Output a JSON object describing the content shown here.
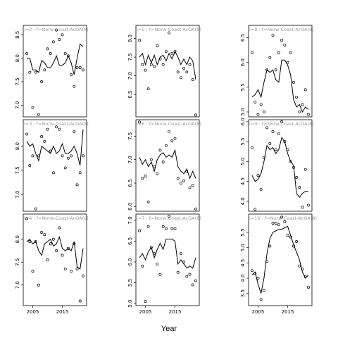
{
  "chart_data": {
    "type": "line",
    "xlabel": "Year",
    "ylabel": "",
    "grid": false,
    "legend": "none",
    "layout": "3x3 small multiples, columns share y-axis per row group",
    "panels": [
      {
        "label": "i=2 : f=Norw-Coast-AcOA(8)",
        "ylim": [
          6.75,
          8.7
        ],
        "yticks": [
          7.0,
          7.5,
          8.0,
          8.5
        ],
        "xticks": [
          2005,
          2015
        ],
        "show_x_ticks": false,
        "x": [
          2003,
          2004,
          2005,
          2006,
          2007,
          2008,
          2009,
          2010,
          2011,
          2012,
          2013,
          2014,
          2015,
          2016,
          2017,
          2018,
          2019,
          2020,
          2021,
          2022
        ],
        "y_line": [
          8.0,
          8.0,
          7.75,
          7.75,
          7.7,
          7.95,
          7.9,
          7.8,
          7.8,
          7.9,
          8.05,
          7.85,
          7.85,
          7.9,
          8.05,
          7.9,
          7.65,
          8.0,
          8.3,
          8.25
        ],
        "points_x": [
          2003,
          2004,
          2005,
          2006,
          2007,
          2008,
          2009,
          2010,
          2011,
          2012,
          2013,
          2014,
          2015,
          2016,
          2017,
          2018,
          2019,
          2020,
          2021,
          2022
        ],
        "points_y": [
          8.1,
          7.7,
          6.95,
          7.7,
          6.8,
          7.5,
          7.75,
          8.2,
          8.1,
          8.35,
          8.6,
          8.4,
          8.5,
          8.1,
          8.05,
          7.65,
          7.4,
          7.8,
          7.8,
          7.75
        ]
      },
      {
        "label": "i=5 : f=Norw-Coast-AcOA(8)",
        "ylim": [
          5.9,
          8.35
        ],
        "yticks": [
          6.5,
          7.0,
          7.5,
          8.0
        ],
        "xticks": [
          2005,
          2015
        ],
        "show_x_ticks": false,
        "x": [
          2003,
          2004,
          2005,
          2006,
          2007,
          2008,
          2009,
          2010,
          2011,
          2012,
          2013,
          2014,
          2015,
          2016,
          2017,
          2018,
          2019,
          2020,
          2021,
          2022
        ],
        "y_line": [
          7.5,
          7.6,
          7.3,
          7.55,
          7.35,
          7.55,
          7.3,
          7.5,
          7.55,
          7.4,
          7.6,
          7.45,
          7.65,
          7.5,
          7.3,
          7.45,
          7.3,
          7.5,
          7.4,
          6.9
        ],
        "points_x": [
          2003,
          2004,
          2005,
          2006,
          2007,
          2008,
          2009,
          2010,
          2011,
          2012,
          2013,
          2014,
          2015,
          2016,
          2017,
          2018,
          2019,
          2020,
          2021,
          2022
        ],
        "points_y": [
          7.95,
          7.3,
          7.15,
          6.65,
          7.3,
          7.25,
          7.8,
          7.45,
          7.3,
          7.65,
          8.15,
          7.6,
          7.65,
          7.1,
          6.95,
          7.2,
          7.1,
          7.3,
          6.9,
          5.95
        ]
      },
      {
        "label": "i=8 : f=Norw-Coast-AcOA(8)",
        "ylim": [
          4.9,
          6.75
        ],
        "yticks": [
          5.0,
          5.5,
          6.0,
          6.5
        ],
        "xticks": [
          2005,
          2015
        ],
        "show_x_ticks": false,
        "x": [
          2003,
          2004,
          2005,
          2006,
          2007,
          2008,
          2009,
          2010,
          2011,
          2012,
          2013,
          2014,
          2015,
          2016,
          2017,
          2018,
          2019,
          2020,
          2021,
          2022
        ],
        "y_line": [
          5.3,
          5.35,
          5.45,
          5.3,
          5.6,
          5.85,
          5.8,
          5.85,
          5.65,
          5.6,
          6.05,
          6.05,
          5.95,
          5.75,
          5.25,
          5.1,
          5.15,
          5.0,
          5.1,
          5.05
        ],
        "points_x": [
          2003,
          2004,
          2005,
          2006,
          2007,
          2008,
          2009,
          2010,
          2011,
          2012,
          2013,
          2014,
          2015,
          2016,
          2017,
          2018,
          2019,
          2020,
          2021,
          2022
        ],
        "points_y": [
          6.2,
          5.2,
          4.95,
          5.15,
          5.0,
          5.85,
          6.1,
          6.55,
          5.85,
          6.2,
          6.45,
          6.35,
          6.0,
          6.2,
          5.6,
          5.3,
          5.0,
          5.15,
          5.45,
          4.95
        ]
      },
      {
        "label": "i=3 : f=Norw-Coast-AcOA(8)",
        "ylim": [
          6.65,
          8.55
        ],
        "yticks": [
          7.0,
          7.5,
          8.0
        ],
        "xticks": [
          2005,
          2015
        ],
        "show_x_ticks": false,
        "x": [
          2003,
          2004,
          2005,
          2006,
          2007,
          2008,
          2009,
          2010,
          2011,
          2012,
          2013,
          2014,
          2015,
          2016,
          2017,
          2018,
          2019,
          2020,
          2021,
          2022
        ],
        "y_line": [
          8.1,
          8.0,
          8.05,
          7.85,
          7.7,
          8.0,
          7.95,
          7.9,
          7.85,
          8.0,
          7.85,
          7.9,
          8.05,
          7.85,
          7.85,
          7.9,
          8.0,
          7.85,
          7.6,
          8.35
        ],
        "points_x": [
          2003,
          2004,
          2005,
          2006,
          2007,
          2008,
          2009,
          2010,
          2011,
          2012,
          2013,
          2014,
          2015,
          2016,
          2017,
          2018,
          2019,
          2020,
          2021,
          2022
        ],
        "points_y": [
          8.25,
          7.6,
          7.8,
          6.7,
          7.8,
          8.2,
          8.1,
          8.35,
          7.9,
          7.45,
          8.4,
          8.35,
          7.8,
          7.55,
          7.75,
          7.8,
          8.3,
          7.2,
          7.45,
          7.8
        ]
      },
      {
        "label": "i=6 : f=Norw-Coast-AcOA(8)",
        "ylim": [
          5.9,
          7.85
        ],
        "yticks": [
          6.0,
          6.5,
          7.0,
          7.5
        ],
        "xticks": [
          2005,
          2015
        ],
        "show_x_ticks": false,
        "x": [
          2003,
          2004,
          2005,
          2006,
          2007,
          2008,
          2009,
          2010,
          2011,
          2012,
          2013,
          2014,
          2015,
          2016,
          2017,
          2018,
          2019,
          2020,
          2021,
          2022
        ],
        "y_line": [
          7.05,
          6.9,
          7.0,
          6.85,
          6.95,
          6.75,
          7.0,
          7.1,
          7.15,
          7.05,
          7.1,
          7.05,
          7.2,
          6.85,
          6.75,
          6.7,
          6.8,
          6.6,
          6.75,
          6.6
        ],
        "points_x": [
          2003,
          2004,
          2005,
          2006,
          2007,
          2008,
          2009,
          2010,
          2011,
          2012,
          2013,
          2014,
          2015,
          2016,
          2017,
          2018,
          2019,
          2020,
          2021,
          2022
        ],
        "points_y": [
          7.8,
          6.6,
          6.65,
          6.1,
          7.0,
          6.85,
          6.7,
          7.2,
          6.95,
          7.3,
          7.6,
          7.4,
          7.45,
          6.6,
          6.5,
          6.55,
          6.75,
          6.4,
          6.45,
          5.95
        ]
      },
      {
        "label": "i=9 : f=Norw-Coast-AcOA(8)",
        "ylim": [
          3.75,
          6.05
        ],
        "yticks": [
          4.0,
          4.5,
          5.0,
          5.5,
          6.0
        ],
        "xticks": [
          2005,
          2015
        ],
        "show_x_ticks": false,
        "x": [
          2003,
          2004,
          2005,
          2006,
          2007,
          2008,
          2009,
          2010,
          2011,
          2012,
          2013,
          2014,
          2015,
          2016,
          2017,
          2018,
          2019,
          2020,
          2021,
          2022
        ],
        "y_line": [
          4.65,
          4.5,
          4.55,
          4.7,
          5.0,
          5.4,
          5.3,
          5.35,
          5.2,
          5.3,
          5.6,
          5.5,
          5.2,
          5.0,
          4.9,
          4.2,
          4.1,
          4.2,
          4.25,
          4.25
        ],
        "points_x": [
          2003,
          2004,
          2005,
          2006,
          2007,
          2008,
          2009,
          2010,
          2011,
          2012,
          2013,
          2014,
          2015,
          2016,
          2017,
          2018,
          2019,
          2020,
          2021,
          2022
        ],
        "points_y": [
          5.35,
          3.8,
          4.65,
          4.3,
          5.1,
          5.85,
          5.45,
          5.75,
          5.3,
          5.7,
          6.0,
          5.5,
          5.3,
          5.0,
          4.85,
          4.6,
          4.35,
          3.85,
          4.8,
          3.9
        ]
      },
      {
        "label": "i=4 : f=Norw-Coast-AcOA(8)",
        "ylim": [
          6.55,
          8.55
        ],
        "yticks": [
          7.0,
          7.5,
          8.0
        ],
        "xticks": [
          2005,
          2015
        ],
        "show_x_ticks": true,
        "x": [
          2003,
          2004,
          2005,
          2006,
          2007,
          2008,
          2009,
          2010,
          2011,
          2012,
          2013,
          2014,
          2015,
          2016,
          2017,
          2018,
          2019,
          2020,
          2021,
          2022
        ],
        "y_line": [
          7.95,
          8.0,
          7.9,
          7.95,
          7.75,
          7.65,
          7.9,
          7.95,
          8.0,
          7.85,
          7.9,
          8.05,
          7.8,
          7.75,
          7.8,
          7.75,
          7.95,
          7.4,
          7.35,
          7.8
        ],
        "points_x": [
          2003,
          2004,
          2005,
          2006,
          2007,
          2008,
          2009,
          2010,
          2011,
          2012,
          2013,
          2014,
          2015,
          2016,
          2017,
          2018,
          2019,
          2020,
          2021,
          2022
        ],
        "points_y": [
          8.45,
          7.95,
          7.3,
          7.95,
          7.0,
          8.15,
          8.1,
          7.55,
          7.9,
          8.0,
          7.75,
          8.25,
          7.65,
          7.35,
          7.8,
          7.3,
          7.9,
          7.35,
          6.65,
          7.2
        ]
      },
      {
        "label": "i=7 : f=Norw-Coast-AcOA(8)",
        "ylim": [
          4.95,
          7.15
        ],
        "yticks": [
          5.0,
          5.5,
          6.0,
          6.5,
          7.0
        ],
        "xticks": [
          2005,
          2015
        ],
        "show_x_ticks": true,
        "x": [
          2003,
          2004,
          2005,
          2006,
          2007,
          2008,
          2009,
          2010,
          2011,
          2012,
          2013,
          2014,
          2015,
          2016,
          2017,
          2018,
          2019,
          2020,
          2021,
          2022
        ],
        "y_line": [
          6.1,
          6.2,
          6.05,
          6.25,
          6.35,
          6.1,
          6.3,
          6.45,
          6.3,
          6.55,
          6.55,
          6.55,
          6.5,
          5.95,
          6.05,
          5.95,
          5.85,
          5.9,
          5.85,
          6.1
        ],
        "points_x": [
          2003,
          2004,
          2005,
          2006,
          2007,
          2008,
          2009,
          2010,
          2011,
          2012,
          2013,
          2014,
          2015,
          2016,
          2017,
          2018,
          2019,
          2020,
          2021,
          2022
        ],
        "points_y": [
          6.75,
          5.9,
          5.05,
          6.85,
          6.35,
          6.2,
          5.95,
          5.7,
          6.85,
          6.8,
          7.1,
          6.8,
          6.8,
          5.75,
          6.2,
          6.0,
          5.65,
          5.7,
          5.45,
          5.55
        ]
      },
      {
        "label": "i=10 : f=Norw-Coast-AcOA(8)",
        "ylim": [
          3.1,
          6.1
        ],
        "yticks": [
          3.5,
          4.0,
          4.5,
          5.0,
          5.5
        ],
        "xticks": [
          2005,
          2015
        ],
        "show_x_ticks": true,
        "x": [
          2003,
          2004,
          2005,
          2006,
          2007,
          2008,
          2009,
          2010,
          2011,
          2012,
          2013,
          2014,
          2015,
          2016,
          2017,
          2018,
          2019,
          2020,
          2021,
          2022
        ],
        "y_line": [
          4.1,
          4.2,
          3.8,
          3.5,
          4.0,
          4.8,
          5.3,
          5.5,
          5.55,
          5.6,
          5.6,
          5.65,
          5.7,
          5.4,
          5.1,
          4.85,
          4.6,
          4.2,
          4.0,
          4.1
        ],
        "points_x": [
          2003,
          2004,
          2005,
          2006,
          2007,
          2008,
          2009,
          2010,
          2011,
          2012,
          2013,
          2014,
          2015,
          2016,
          2017,
          2018,
          2019,
          2020,
          2021,
          2022
        ],
        "points_y": [
          4.25,
          4.15,
          4.0,
          3.3,
          3.6,
          4.55,
          5.05,
          5.8,
          5.8,
          5.75,
          6.0,
          5.85,
          5.4,
          5.35,
          5.05,
          5.2,
          4.4,
          4.3,
          4.05,
          3.7
        ]
      }
    ]
  }
}
